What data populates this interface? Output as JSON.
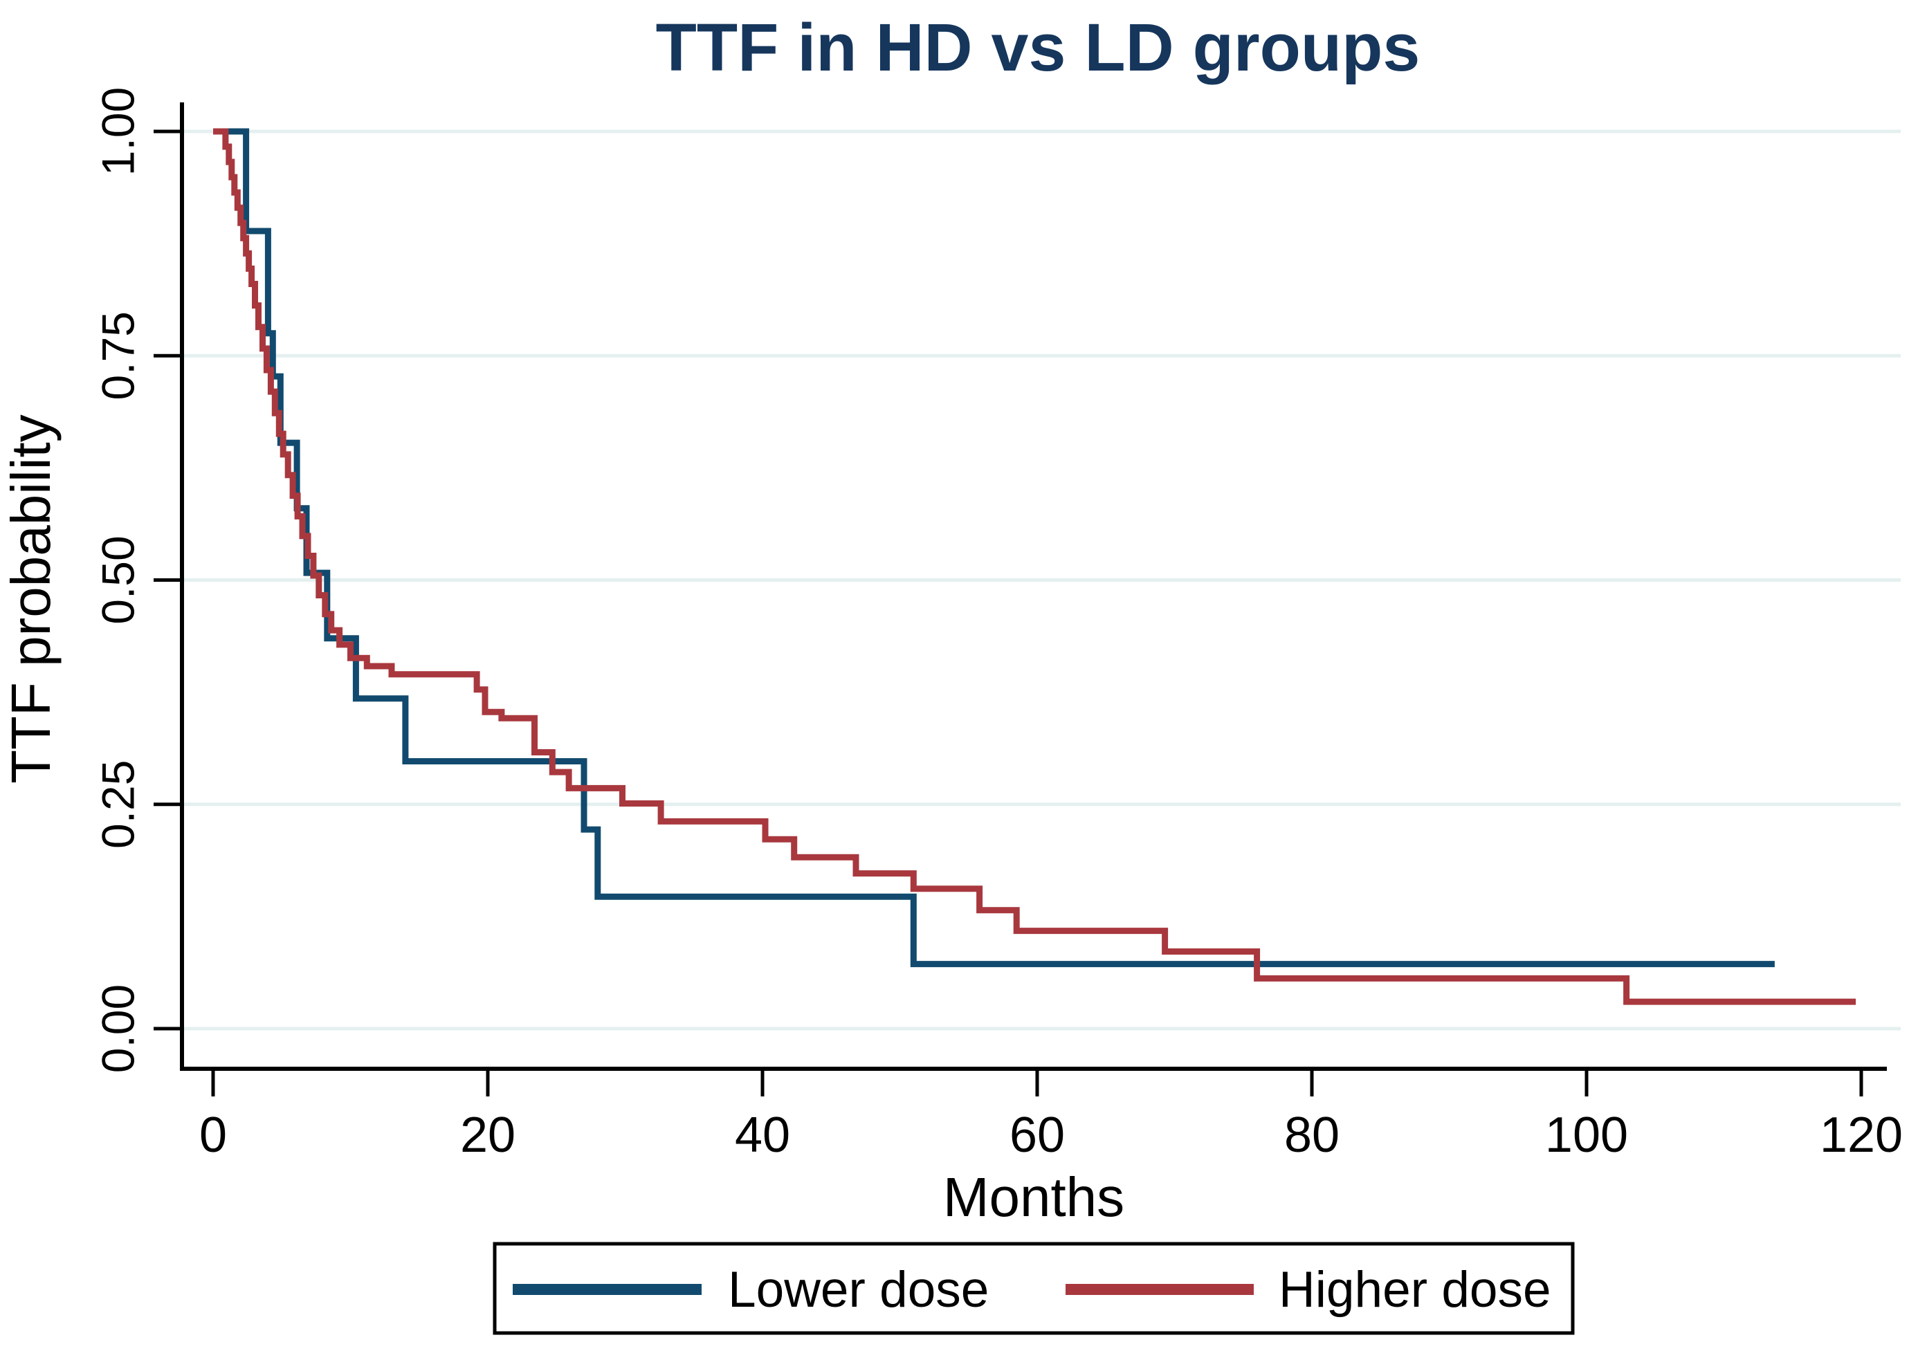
{
  "chart_data": {
    "type": "line",
    "subtype": "kaplan-meier-step",
    "title": "TTF in HD vs LD groups",
    "title_color": "#16365c",
    "xlabel": "Months",
    "ylabel": "TTF probability",
    "xlim": [
      0,
      120
    ],
    "ylim": [
      0,
      1
    ],
    "grid": true,
    "grid_color": "#e4f0ef",
    "axis_color": "#000000",
    "background_color": "#ffffff",
    "legend_position": "bottom",
    "xticks": [
      0,
      20,
      40,
      60,
      80,
      100,
      120
    ],
    "yticks": [
      {
        "value": 0.0,
        "label": "0.00"
      },
      {
        "value": 0.25,
        "label": "0.25"
      },
      {
        "value": 0.5,
        "label": "0.50"
      },
      {
        "value": 0.75,
        "label": "0.75"
      },
      {
        "value": 1.0,
        "label": "1.00"
      }
    ],
    "series": [
      {
        "name": "Lower dose",
        "color": "#114a6e",
        "start": [
          0,
          1.0
        ],
        "steps": [
          [
            2.4,
            0.889
          ],
          [
            4.0,
            0.775
          ],
          [
            4.35,
            0.727
          ],
          [
            4.9,
            0.653
          ],
          [
            6.1,
            0.58
          ],
          [
            6.8,
            0.508
          ],
          [
            8.3,
            0.435
          ],
          [
            10.4,
            0.368
          ],
          [
            14.0,
            0.298
          ],
          [
            27.0,
            0.222
          ],
          [
            28.0,
            0.147
          ],
          [
            51.0,
            0.072
          ]
        ],
        "end_time": 113.7
      },
      {
        "name": "Higher dose",
        "color": "#a8383e",
        "start": [
          0,
          1.0
        ],
        "steps": [
          [
            0.9,
            0.983
          ],
          [
            1.15,
            0.966
          ],
          [
            1.35,
            0.949
          ],
          [
            1.55,
            0.932
          ],
          [
            1.78,
            0.915
          ],
          [
            2.0,
            0.898
          ],
          [
            2.2,
            0.881
          ],
          [
            2.4,
            0.864
          ],
          [
            2.6,
            0.847
          ],
          [
            2.8,
            0.83
          ],
          [
            3.05,
            0.806
          ],
          [
            3.3,
            0.782
          ],
          [
            3.6,
            0.758
          ],
          [
            3.9,
            0.734
          ],
          [
            4.2,
            0.71
          ],
          [
            4.5,
            0.686
          ],
          [
            4.8,
            0.663
          ],
          [
            5.1,
            0.64
          ],
          [
            5.45,
            0.617
          ],
          [
            5.8,
            0.594
          ],
          [
            6.15,
            0.571
          ],
          [
            6.5,
            0.549
          ],
          [
            6.9,
            0.527
          ],
          [
            7.3,
            0.505
          ],
          [
            7.7,
            0.483
          ],
          [
            8.15,
            0.462
          ],
          [
            8.6,
            0.444
          ],
          [
            9.2,
            0.428
          ],
          [
            10.0,
            0.413
          ],
          [
            11.2,
            0.404
          ],
          [
            13.0,
            0.395
          ],
          [
            19.2,
            0.378
          ],
          [
            19.8,
            0.353
          ],
          [
            21.0,
            0.346
          ],
          [
            23.4,
            0.308
          ],
          [
            24.7,
            0.286
          ],
          [
            25.9,
            0.268
          ],
          [
            29.8,
            0.251
          ],
          [
            32.6,
            0.231
          ],
          [
            40.2,
            0.211
          ],
          [
            42.3,
            0.191
          ],
          [
            46.8,
            0.173
          ],
          [
            51.0,
            0.156
          ],
          [
            55.8,
            0.132
          ],
          [
            58.5,
            0.109
          ],
          [
            69.3,
            0.086
          ],
          [
            76.0,
            0.056
          ],
          [
            102.9,
            0.03
          ]
        ],
        "end_time": 119.6
      }
    ]
  }
}
